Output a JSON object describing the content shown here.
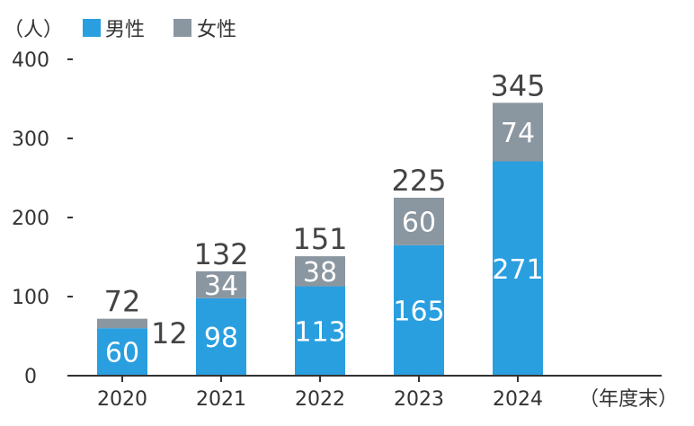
{
  "chart_data": {
    "type": "bar",
    "stacked": true,
    "unit_label": "（人）",
    "x_unit_label": "（年度末）",
    "categories": [
      "2020",
      "2021",
      "2022",
      "2023",
      "2024"
    ],
    "series": [
      {
        "name": "男性",
        "values": [
          60,
          98,
          113,
          165,
          271
        ],
        "color": "#2a9fe0"
      },
      {
        "name": "女性",
        "values": [
          12,
          34,
          38,
          60,
          74
        ],
        "color": "#8a96a0"
      }
    ],
    "totals": [
      72,
      132,
      151,
      225,
      345
    ],
    "yticks": [
      0,
      100,
      200,
      300,
      400
    ],
    "ylim": [
      0,
      400
    ],
    "grid": false,
    "legend_position": "top-left"
  }
}
